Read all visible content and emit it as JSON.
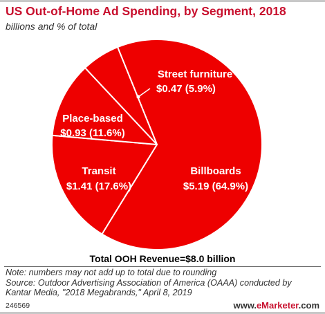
{
  "header": {
    "title": "US Out-of-Home Ad Spending, by Segment, 2018",
    "subtitle": "billions and % of total"
  },
  "colors": {
    "accent": "#c8102e",
    "slice": "#ee0000",
    "slice_border": "#ffffff"
  },
  "chart_data": {
    "type": "pie",
    "unit": "billions",
    "slices": [
      {
        "name": "Billboards",
        "value_label": "$5.19 (64.9%)",
        "value": 5.19,
        "percent": 64.9
      },
      {
        "name": "Transit",
        "value_label": "$1.41 (17.6%)",
        "value": 1.41,
        "percent": 17.6
      },
      {
        "name": "Place-based",
        "value_label": "$0.93 (11.6%)",
        "value": 0.93,
        "percent": 11.6
      },
      {
        "name": "Street furniture",
        "value_label": "$0.47 (5.9%)",
        "value": 0.47,
        "percent": 5.9
      }
    ],
    "total_label": "Total OOH Revenue=$8.0 billion"
  },
  "footer": {
    "note_lines": [
      "Note: numbers may not add up to total due to rounding",
      "Source: Outdoor Advertising Association of America (OAAA) conducted by",
      "Kantar Media, \"2018 Megabrands,\" April 8, 2019"
    ],
    "chart_id": "246569",
    "brand": {
      "prefix": "www.",
      "name": "eMarketer",
      "suffix": ".com"
    }
  }
}
